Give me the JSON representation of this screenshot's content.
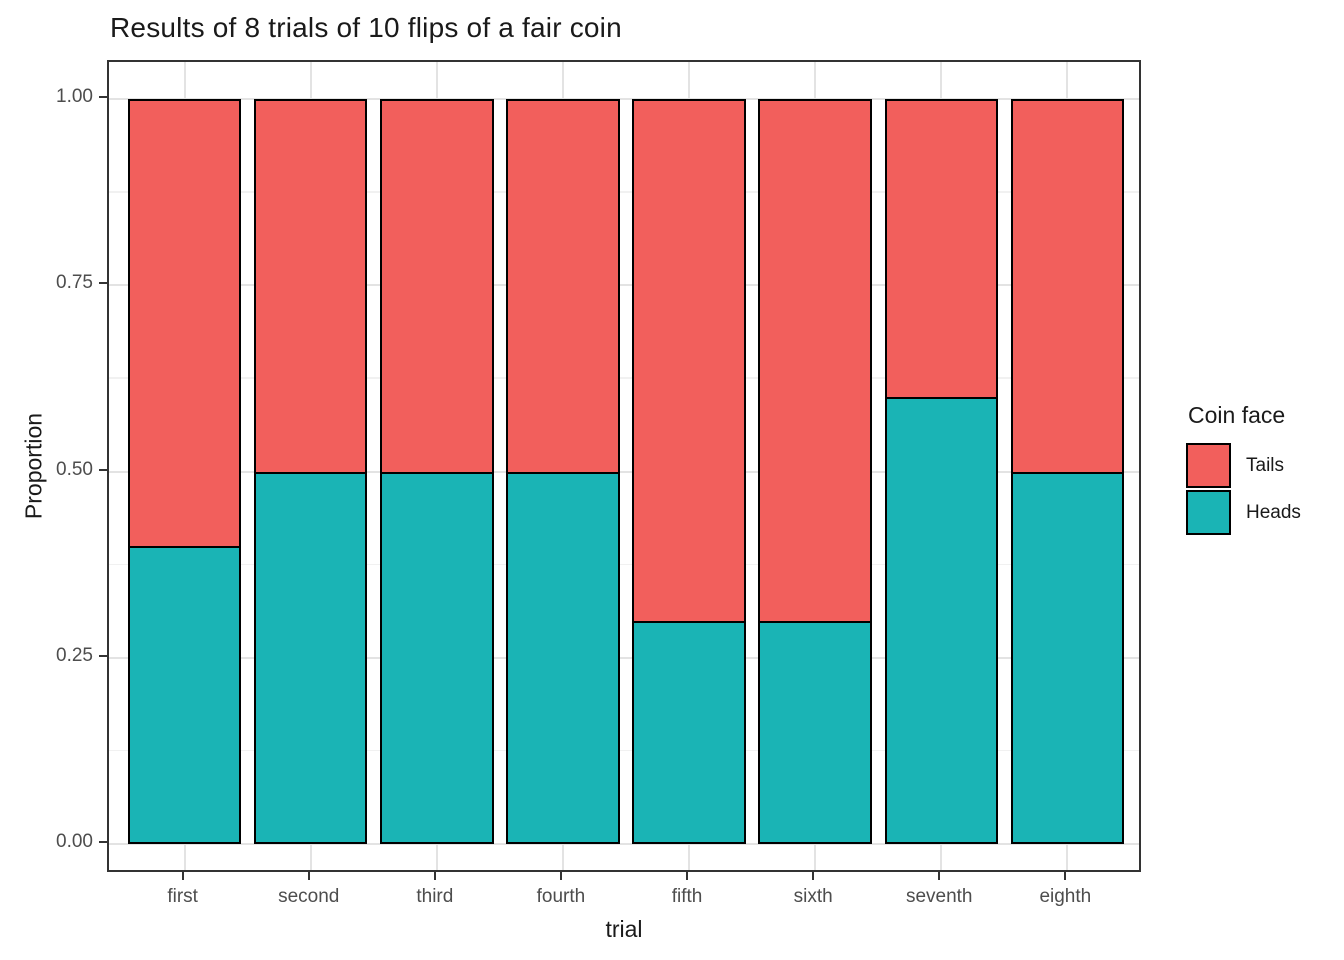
{
  "title": "Results of 8 trials of 10 flips of a fair coin",
  "chart_data": {
    "type": "bar",
    "stacked": true,
    "orientation": "vertical",
    "title": "Results of 8 trials of 10 flips of a fair coin",
    "xlabel": "trial",
    "ylabel": "Proportion",
    "categories": [
      "first",
      "second",
      "third",
      "fourth",
      "fifth",
      "sixth",
      "seventh",
      "eighth"
    ],
    "series": [
      {
        "name": "Tails",
        "color": "#F25F5C",
        "values": [
          0.6,
          0.5,
          0.5,
          0.5,
          0.7,
          0.7,
          0.4,
          0.5
        ]
      },
      {
        "name": "Heads",
        "color": "#1AB4B5",
        "values": [
          0.4,
          0.5,
          0.5,
          0.5,
          0.3,
          0.3,
          0.6,
          0.5
        ]
      }
    ],
    "ylim": [
      0,
      1
    ],
    "y_major_ticks": [
      0,
      0.25,
      0.5,
      0.75,
      1
    ],
    "y_tick_labels": [
      "0.00",
      "0.25",
      "0.50",
      "0.75",
      "1.00"
    ],
    "y_minor_ticks": [
      0.125,
      0.375,
      0.625,
      0.875
    ],
    "grid": "on",
    "legend_title": "Coin face",
    "legend_position": "right",
    "bar_outline_color": "#000000",
    "colors": {
      "grid_major": "#e3e3e3",
      "grid_minor": "#f1f1f1",
      "panel_border": "#333333",
      "axis_text": "#4d4d4d"
    }
  }
}
